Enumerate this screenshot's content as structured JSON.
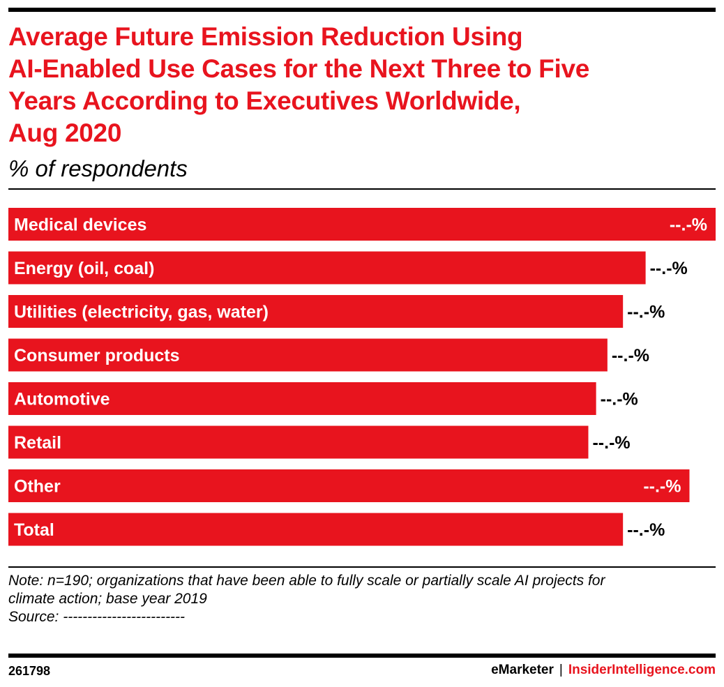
{
  "header": {
    "title": "Average Future Emission Reduction Using\nAI-Enabled Use Cases for the Next Three to Five\nYears According to Executives Worldwide,\nAug 2020",
    "subtitle": "% of respondents"
  },
  "footer": {
    "note_line1": "Note: n=190; organizations that have been able to fully scale or partially scale AI projects for",
    "note_line2": "climate action; base year 2019",
    "source": "Source: -------------------------",
    "chart_id": "261798",
    "brand_emarketer": "eMarketer",
    "brand_separator": "|",
    "brand_insider": "InsiderIntelligence.com"
  },
  "colors": {
    "accent": "#e8141e",
    "text": "#000000"
  },
  "chart_data": {
    "type": "bar",
    "orientation": "horizontal",
    "title": "Average Future Emission Reduction Using AI-Enabled Use Cases for the Next Three to Five Years According to Executives Worldwide, Aug 2020",
    "subtitle": "% of respondents",
    "categories": [
      "Medical devices",
      "Energy (oil, coal)",
      "Utilities (electricity, gas, water)",
      "Consumer products",
      "Automotive",
      "Retail",
      "Other",
      "Total"
    ],
    "values": [
      100,
      90.1,
      86.9,
      84.7,
      83.1,
      82.0,
      96.3,
      86.9
    ],
    "value_labels": [
      "--.-%",
      "--.-%",
      "--.-%",
      "--.-%",
      "--.-%",
      "--.-%",
      "--.-%",
      "--.-%"
    ],
    "value_label_inside": [
      true,
      false,
      false,
      false,
      false,
      false,
      true,
      false
    ],
    "xlim": [
      0,
      100
    ],
    "grid": false,
    "legend": "none"
  }
}
